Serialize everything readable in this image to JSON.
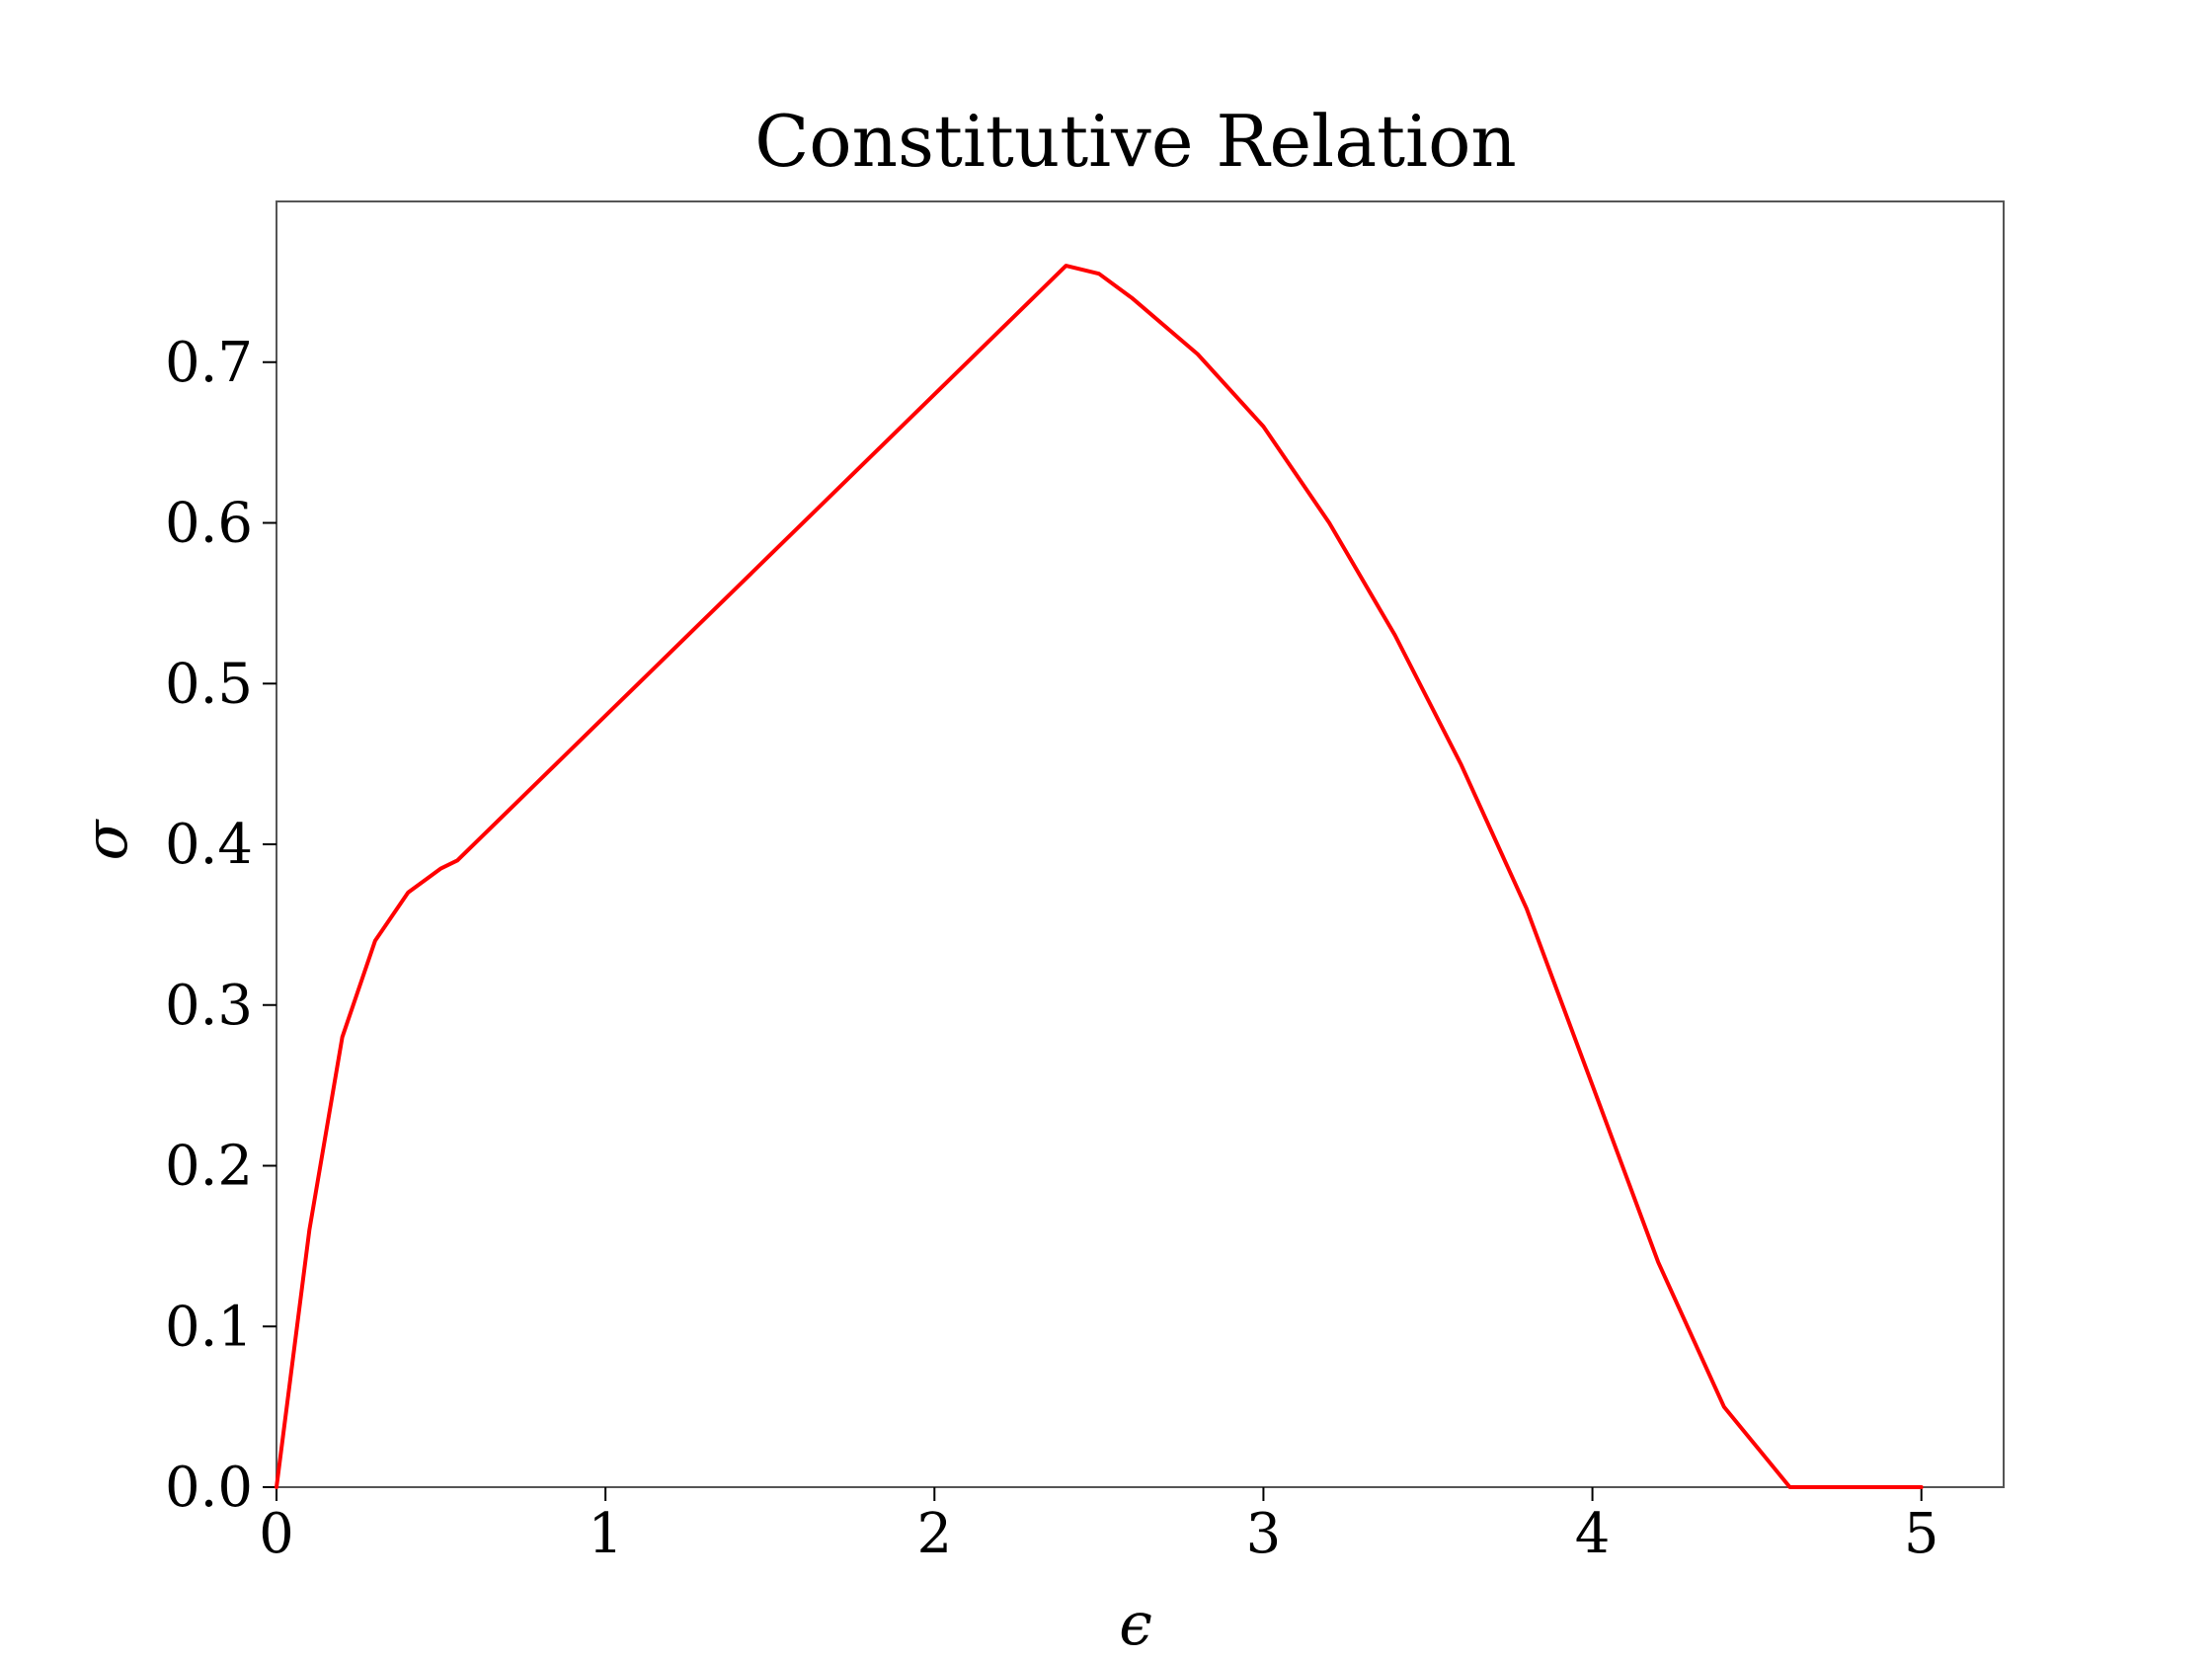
{
  "chart_data": {
    "type": "line",
    "title": "Constitutive Relation",
    "xlabel": "ϵ",
    "ylabel": "σ",
    "xlim": [
      0,
      5.25
    ],
    "ylim": [
      0,
      0.8
    ],
    "xticks": [
      0,
      1,
      2,
      3,
      4,
      5
    ],
    "yticks": [
      0.0,
      0.1,
      0.2,
      0.3,
      0.4,
      0.5,
      0.6,
      0.7
    ],
    "xtick_labels": [
      "0",
      "1",
      "2",
      "3",
      "4",
      "5"
    ],
    "ytick_labels": [
      "0.0",
      "0.1",
      "0.2",
      "0.3",
      "0.4",
      "0.5",
      "0.6",
      "0.7"
    ],
    "grid": false,
    "series": [
      {
        "color": "#ff0000",
        "x": [
          0,
          0.1,
          0.2,
          0.3,
          0.4,
          0.5,
          0.55,
          1.0,
          1.5,
          2.0,
          2.4,
          2.5,
          2.6,
          2.8,
          3.0,
          3.2,
          3.4,
          3.6,
          3.8,
          4.0,
          4.2,
          4.4,
          4.6,
          5.0
        ],
        "y": [
          0.0,
          0.16,
          0.28,
          0.34,
          0.37,
          0.385,
          0.39,
          0.48,
          0.58,
          0.68,
          0.76,
          0.755,
          0.74,
          0.705,
          0.66,
          0.6,
          0.53,
          0.45,
          0.36,
          0.25,
          0.14,
          0.05,
          0.0,
          0.0
        ]
      }
    ]
  }
}
